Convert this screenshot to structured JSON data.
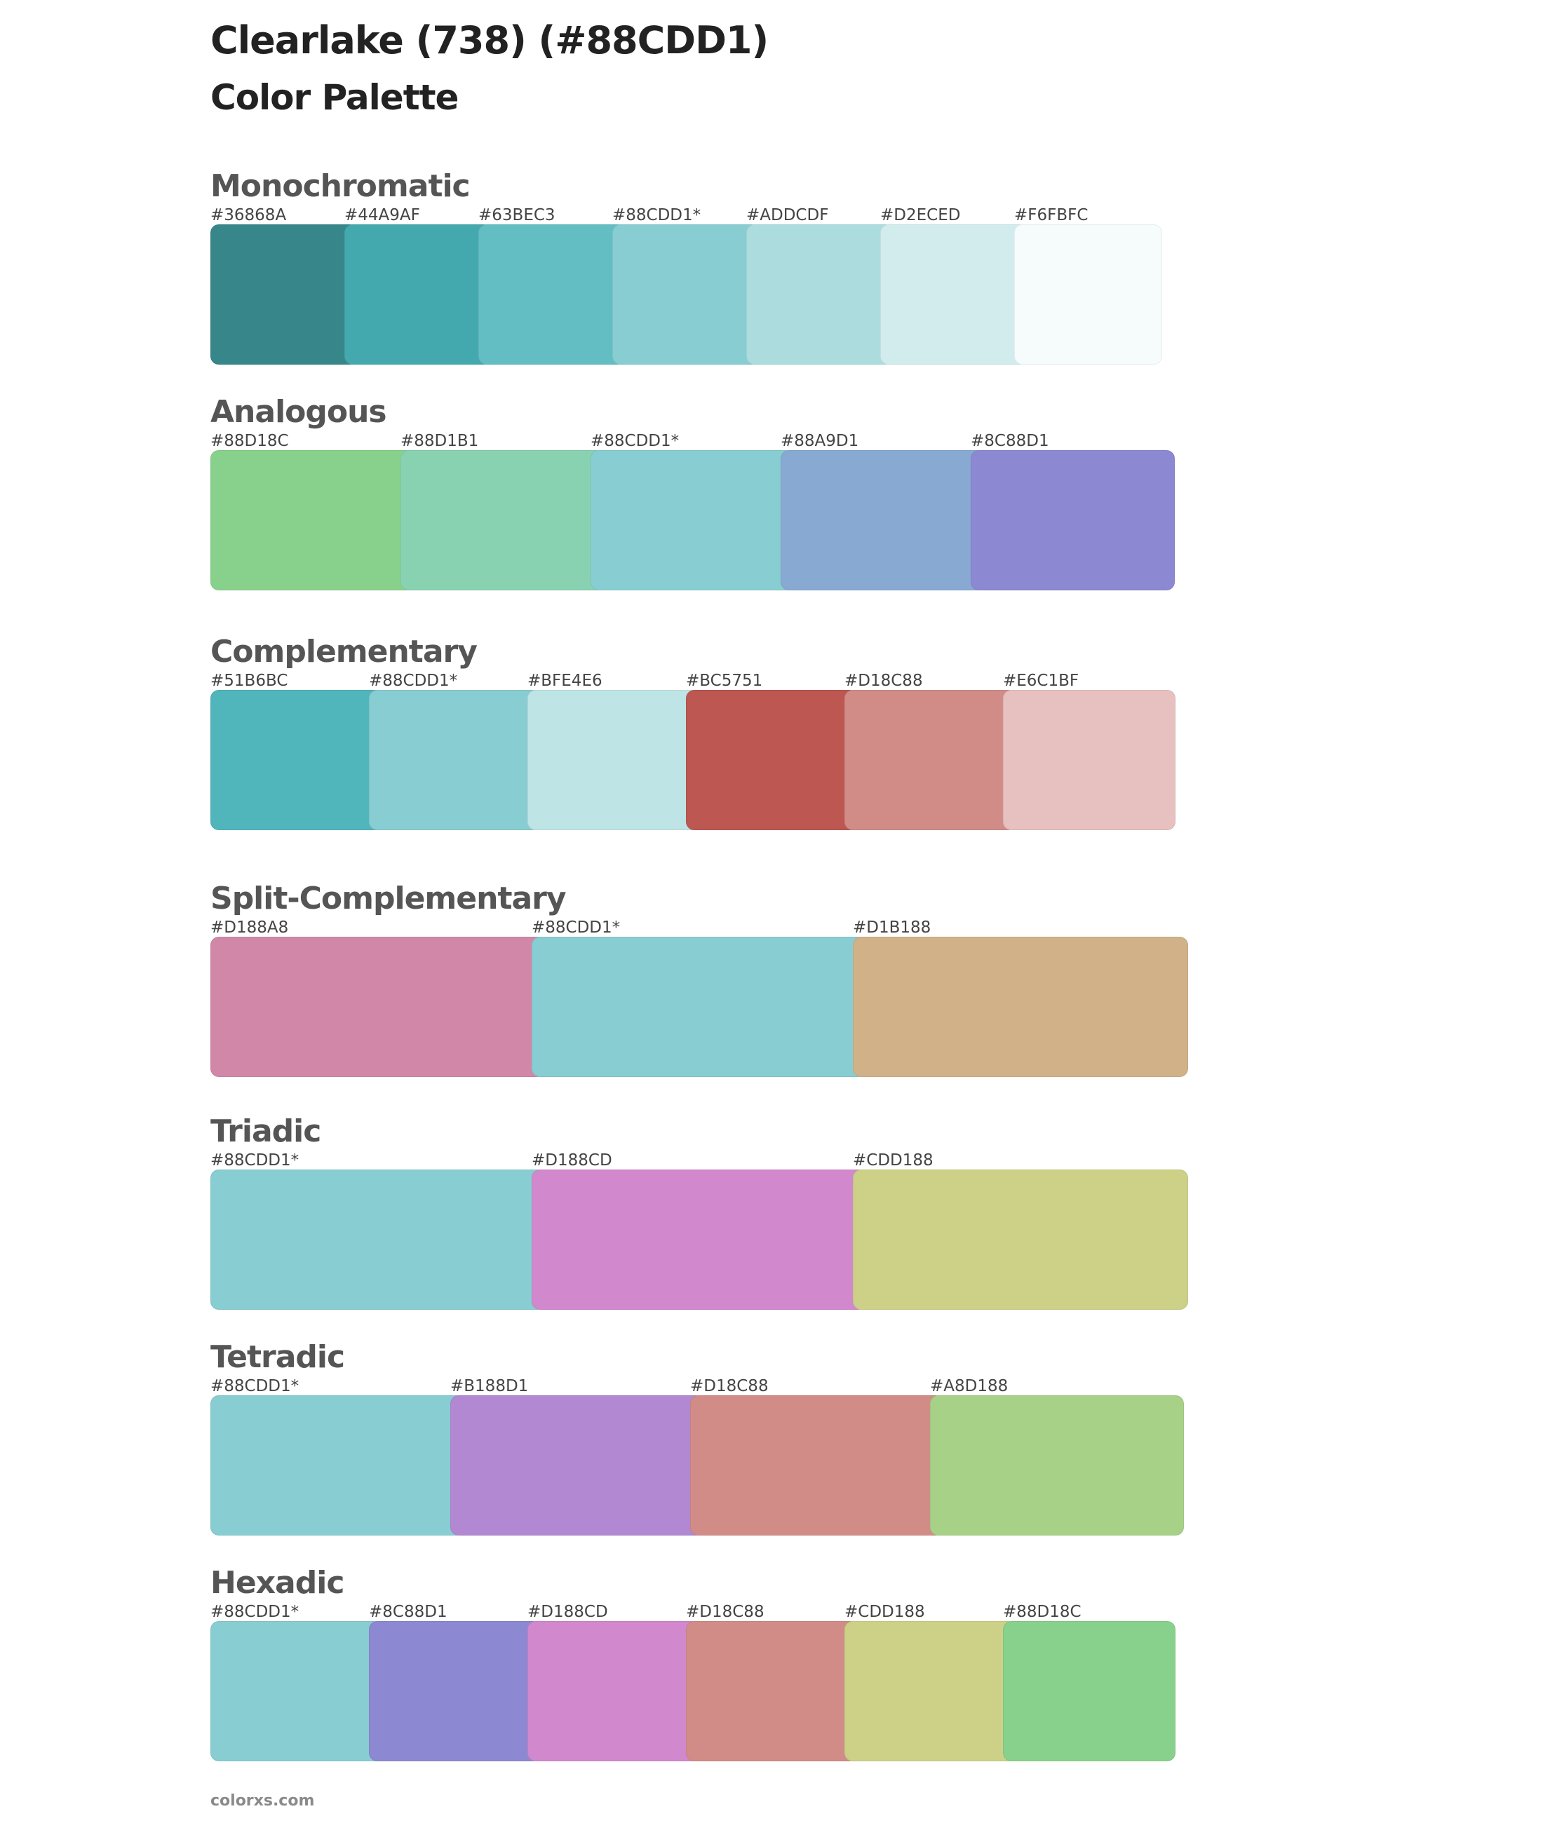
{
  "title": "Clearlake (738) (#88CDD1)",
  "subtitle": "Color Palette",
  "footer": "colorxs.com",
  "sections": [
    {
      "name": "Monochromatic",
      "swatches": [
        {
          "label": "#36868A",
          "color": "#36868A"
        },
        {
          "label": "#44A9AF",
          "color": "#44A9AF"
        },
        {
          "label": "#63BEC3",
          "color": "#63BEC3"
        },
        {
          "label": "#88CDD1*",
          "color": "#88CDD1"
        },
        {
          "label": "#ADDCDF",
          "color": "#ADDCDF"
        },
        {
          "label": "#D2ECED",
          "color": "#D2ECED"
        },
        {
          "label": "#F6FBFC",
          "color": "#F6FBFC"
        }
      ]
    },
    {
      "name": "Analogous",
      "swatches": [
        {
          "label": "#88D18C",
          "color": "#88D18C"
        },
        {
          "label": "#88D1B1",
          "color": "#88D1B1"
        },
        {
          "label": "#88CDD1*",
          "color": "#88CDD1"
        },
        {
          "label": "#88A9D1",
          "color": "#88A9D1"
        },
        {
          "label": "#8C88D1",
          "color": "#8C88D1"
        }
      ]
    },
    {
      "name": "Complementary",
      "swatches": [
        {
          "label": "#51B6BC",
          "color": "#51B6BC"
        },
        {
          "label": "#88CDD1*",
          "color": "#88CDD1"
        },
        {
          "label": "#BFE4E6",
          "color": "#BFE4E6"
        },
        {
          "label": "#BC5751",
          "color": "#BC5751"
        },
        {
          "label": "#D18C88",
          "color": "#D18C88"
        },
        {
          "label": "#E6C1BF",
          "color": "#E6C1BF"
        }
      ]
    },
    {
      "name": "Split-Complementary",
      "swatches": [
        {
          "label": "#D188A8",
          "color": "#D188A8"
        },
        {
          "label": "#88CDD1*",
          "color": "#88CDD1"
        },
        {
          "label": "#D1B188",
          "color": "#D1B188"
        }
      ]
    },
    {
      "name": "Triadic",
      "swatches": [
        {
          "label": "#88CDD1*",
          "color": "#88CDD1"
        },
        {
          "label": "#D188CD",
          "color": "#D188CD"
        },
        {
          "label": "#CDD188",
          "color": "#CDD188"
        }
      ]
    },
    {
      "name": "Tetradic",
      "swatches": [
        {
          "label": "#88CDD1*",
          "color": "#88CDD1"
        },
        {
          "label": "#B188D1",
          "color": "#B188D1"
        },
        {
          "label": "#D18C88",
          "color": "#D18C88"
        },
        {
          "label": "#A8D188",
          "color": "#A8D188"
        }
      ]
    },
    {
      "name": "Hexadic",
      "swatches": [
        {
          "label": "#88CDD1*",
          "color": "#88CDD1"
        },
        {
          "label": "#8C88D1",
          "color": "#8C88D1"
        },
        {
          "label": "#D188CD",
          "color": "#D188CD"
        },
        {
          "label": "#D18C88",
          "color": "#D18C88"
        },
        {
          "label": "#CDD188",
          "color": "#CDD188"
        },
        {
          "label": "#88D18C",
          "color": "#88D18C"
        }
      ]
    }
  ]
}
